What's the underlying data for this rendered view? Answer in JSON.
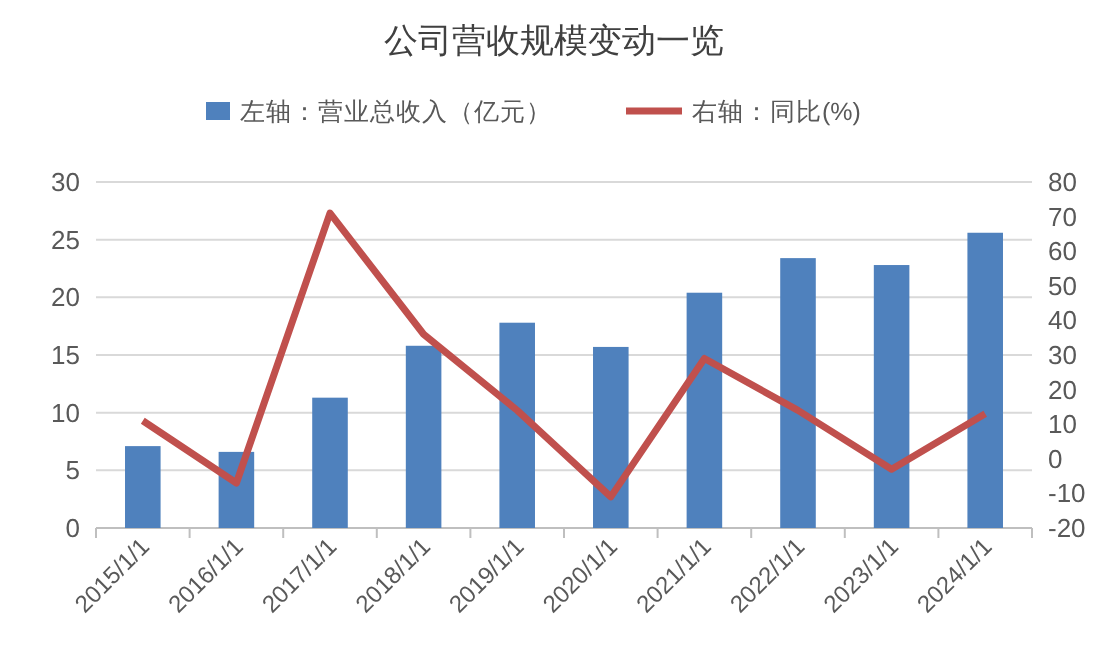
{
  "chart_data": {
    "type": "bar",
    "title": "公司营收规模变动一览",
    "categories": [
      "2015/1/1",
      "2016/1/1",
      "2017/1/1",
      "2018/1/1",
      "2019/1/1",
      "2020/1/1",
      "2021/1/1",
      "2022/1/1",
      "2023/1/1",
      "2024/1/1"
    ],
    "series": [
      {
        "name": "左轴：营业总收入（亿元）",
        "color": "#4f81bd",
        "values": [
          7.1,
          6.6,
          11.3,
          15.8,
          17.8,
          15.7,
          20.4,
          23.4,
          22.8,
          25.6
        ]
      },
      {
        "name": "右轴：同比(%)",
        "type": "line",
        "axis": "y2",
        "color": "#c0504d",
        "values": [
          11,
          -7,
          71,
          36,
          14,
          -11,
          29,
          14,
          -3,
          13
        ]
      }
    ],
    "ylim": [
      0,
      30
    ],
    "yticks": [
      0,
      5,
      10,
      15,
      20,
      25,
      30
    ],
    "y2lim": [
      -20,
      80
    ],
    "y2ticks": [
      -20,
      -10,
      0,
      10,
      20,
      30,
      40,
      50,
      60,
      70,
      80
    ],
    "grid": "y",
    "legend": "top",
    "marker": "none",
    "line_style": "solid"
  }
}
